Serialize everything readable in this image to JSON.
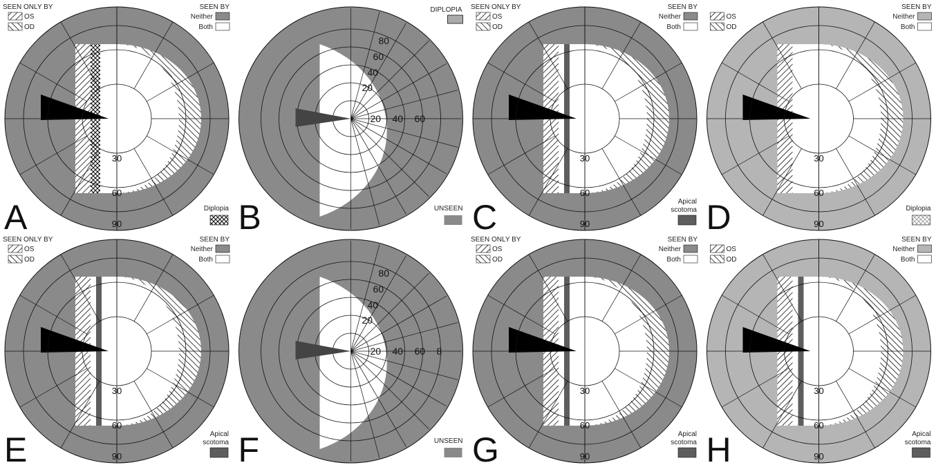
{
  "colors": {
    "neither": "#8a8a8a",
    "unseen": "#8a8a8a",
    "apical": "#5e5e5e",
    "both": "#ffffff",
    "line": "#111111",
    "black_wedge": "#000000"
  },
  "panels": [
    {
      "id": "A",
      "letter": "A",
      "variant": "binocular",
      "seen_only_by": "SEEN ONLY BY",
      "os": "OS",
      "od": "OD",
      "seen_by": "SEEN BY",
      "neither": "Neither",
      "both": "Both",
      "deg30": "30",
      "deg60": "60",
      "deg90": "90",
      "corner": "Diplopia",
      "corner_swatch": "crosshatch"
    },
    {
      "id": "B",
      "letter": "B",
      "variant": "polar",
      "top_label": "DIPLOPIA",
      "corner": "UNSEEN",
      "corner_swatch": "unseen",
      "polar_labels": [
        "80",
        "60",
        "40",
        "20",
        "20",
        "40",
        "60"
      ]
    },
    {
      "id": "C",
      "letter": "C",
      "variant": "binocular",
      "seen_only_by": "SEEN ONLY BY",
      "os": "OS",
      "od": "OD",
      "seen_by": "SEEN BY",
      "neither": "Neither",
      "both": "Both",
      "deg30": "30",
      "deg60": "60",
      "deg90": "90",
      "corner": "Apical scotoma",
      "corner_line1": "Apical",
      "corner_line2": "scotoma",
      "corner_swatch": "apical"
    },
    {
      "id": "D",
      "letter": "D",
      "variant": "light",
      "os": "OS",
      "od": "OD",
      "seen_by": "SEEN BY",
      "neither": "Neither",
      "both": "Both",
      "deg30": "30",
      "deg60": "60",
      "deg90": "90",
      "corner": "Diplopia",
      "corner_swatch": "lightcross"
    },
    {
      "id": "E",
      "letter": "E",
      "variant": "binocular",
      "seen_only_by": "SEEN ONLY BY",
      "os": "OS",
      "od": "OD",
      "seen_by": "SEEN BY",
      "neither": "Neither",
      "both": "Both",
      "deg30": "30",
      "deg60": "60",
      "deg90": "90",
      "corner_line1": "Apical",
      "corner_line2": "scotoma",
      "corner_swatch": "apical"
    },
    {
      "id": "F",
      "letter": "F",
      "variant": "polar",
      "corner": "UNSEEN",
      "corner_swatch": "unseen",
      "polar_labels": [
        "80",
        "60",
        "40",
        "20",
        "20",
        "40",
        "60",
        "8"
      ]
    },
    {
      "id": "G",
      "letter": "G",
      "variant": "binocular",
      "seen_only_by": "SEEN ONLY BY",
      "os": "OS",
      "od": "OD",
      "seen_by": "SEEN BY",
      "neither": "Neither",
      "both": "Both",
      "deg30": "30",
      "deg60": "60",
      "deg90": "90",
      "corner_line1": "Apical",
      "corner_line2": "scotoma",
      "corner_swatch": "apical"
    },
    {
      "id": "H",
      "letter": "H",
      "variant": "light",
      "os": "OS",
      "od": "OD",
      "seen_by": "SEEN BY",
      "neither": "Neither",
      "both": "Both",
      "deg30": "30",
      "deg60": "60",
      "deg90": "90",
      "corner_line1": "Apical",
      "corner_line2": "scotoma",
      "corner_swatch": "apical"
    }
  ]
}
